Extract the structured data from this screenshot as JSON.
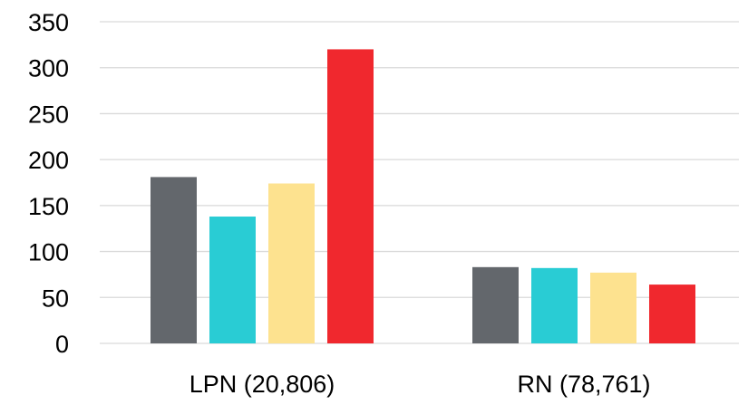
{
  "chart_data": {
    "type": "bar",
    "categories": [
      "LPN (20,806)",
      "RN (78,761)"
    ],
    "series": [
      {
        "values": [
          181,
          83
        ],
        "color": "#63676c"
      },
      {
        "values": [
          138,
          82
        ],
        "color": "#29ccd4"
      },
      {
        "values": [
          174,
          77
        ],
        "color": "#fde28f"
      },
      {
        "values": [
          320,
          64
        ],
        "color": "#f0282e"
      }
    ],
    "yticks": [
      0,
      50,
      100,
      150,
      200,
      250,
      300,
      350
    ],
    "ylim": [
      0,
      350
    ],
    "grid": true,
    "title": "",
    "xlabel": "",
    "ylabel": ""
  }
}
